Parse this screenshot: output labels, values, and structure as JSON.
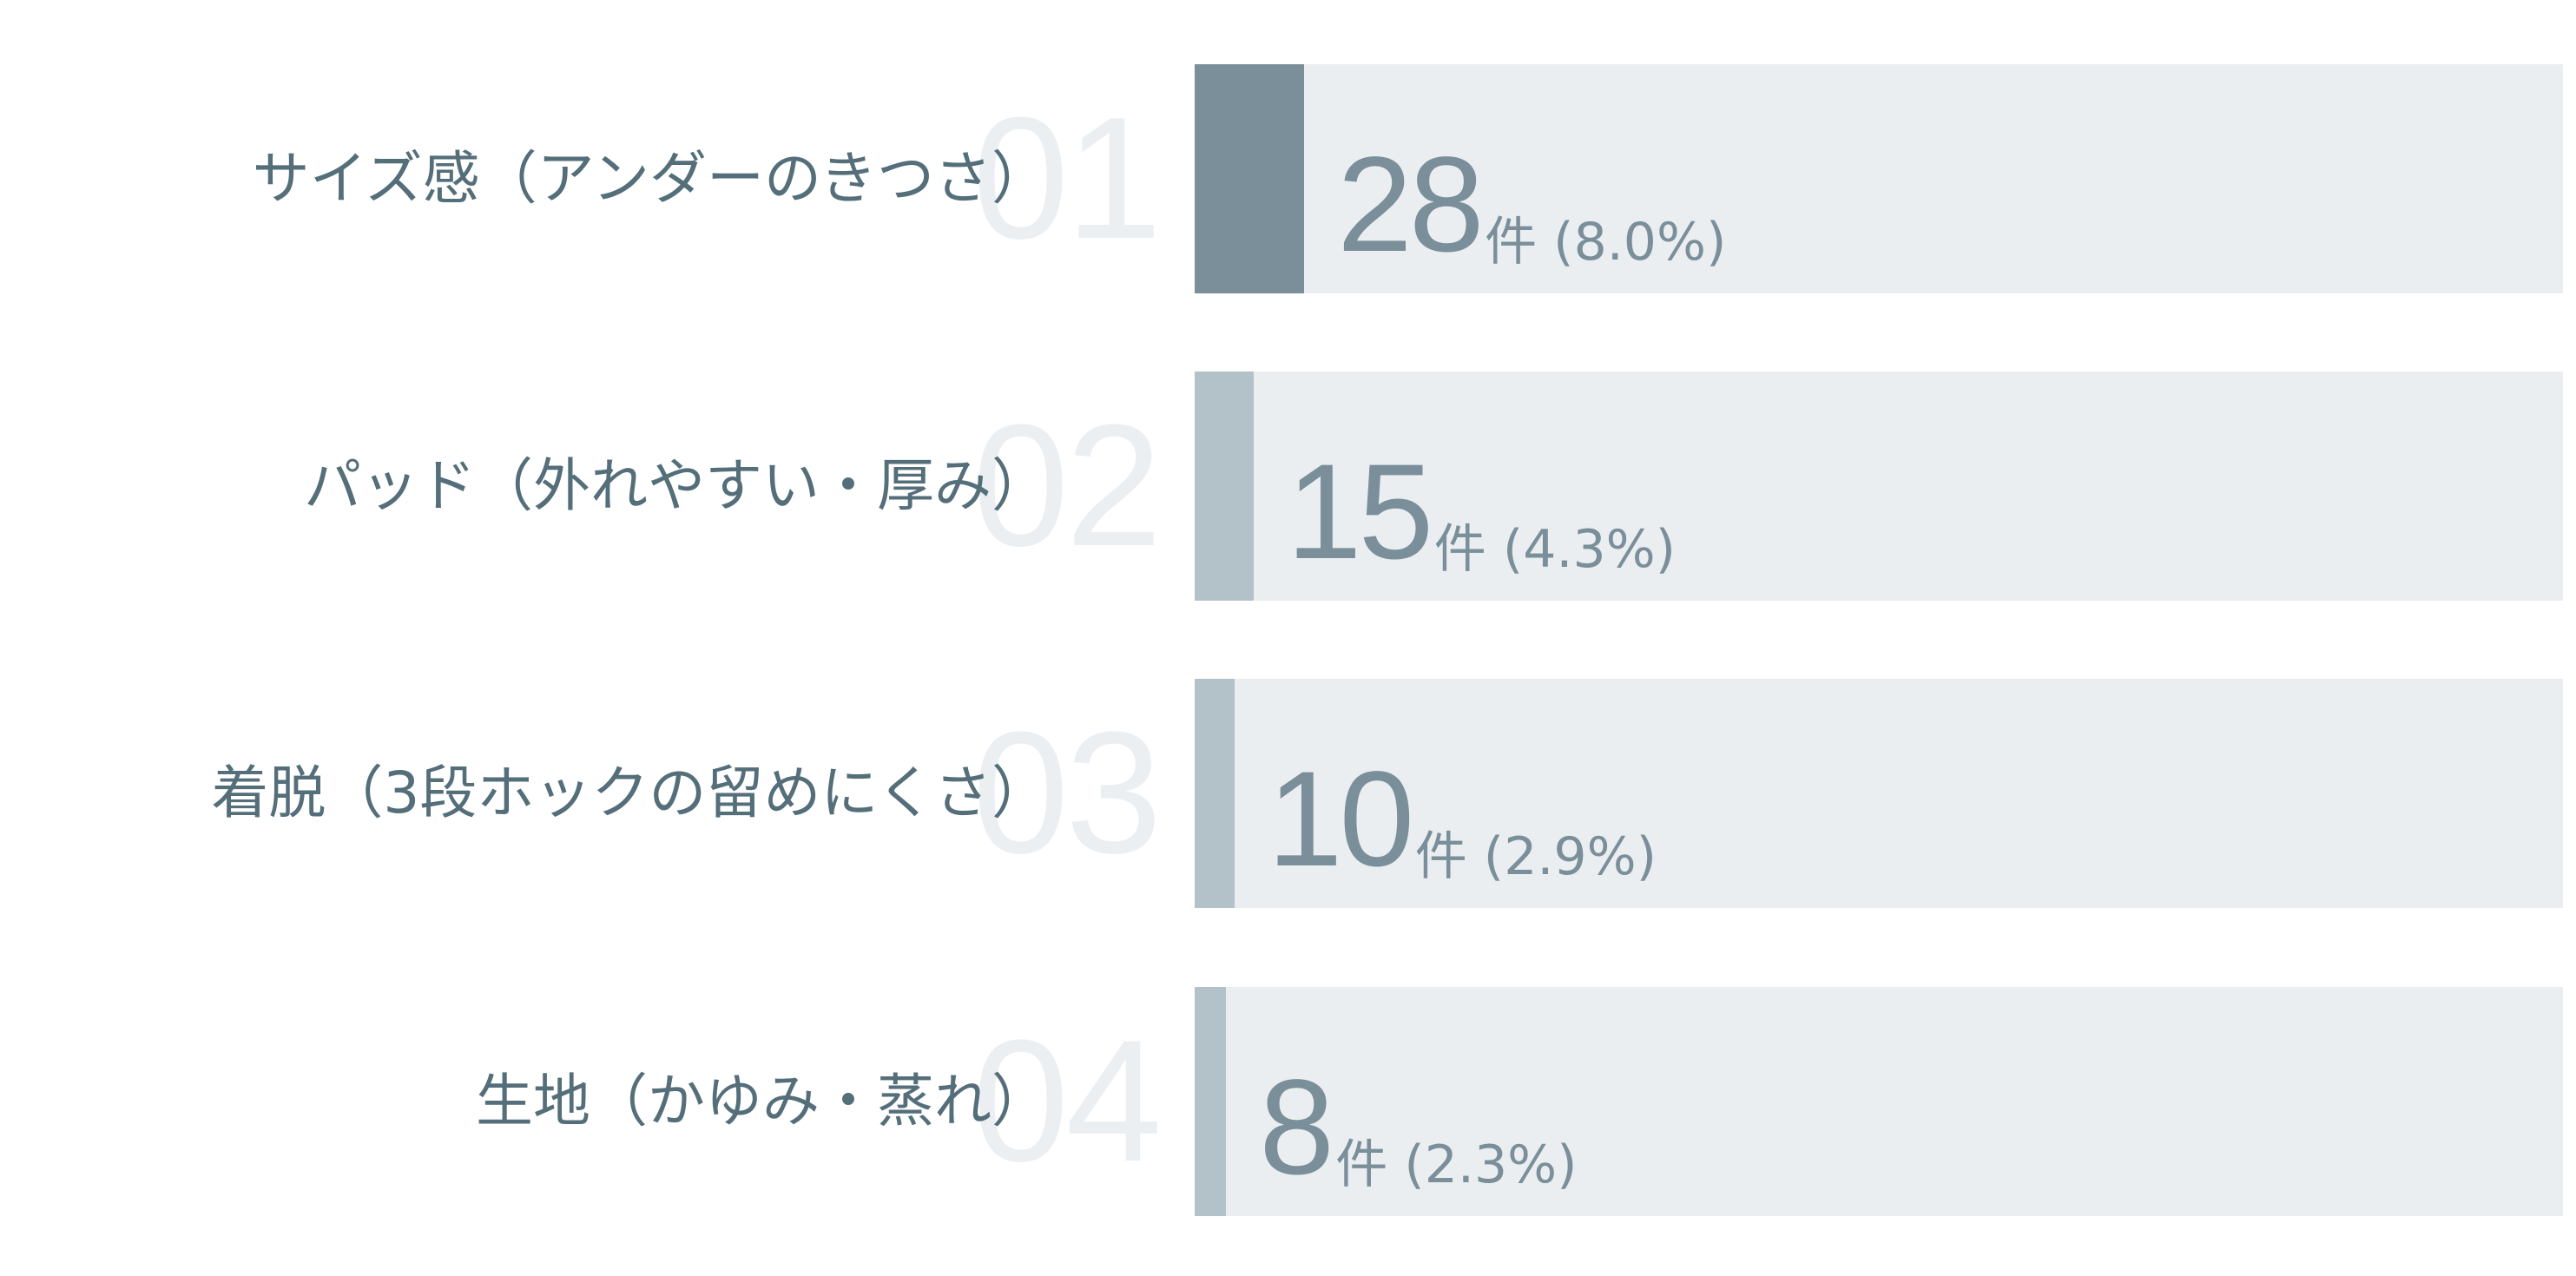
{
  "chart_data": {
    "type": "bar",
    "orientation": "horizontal",
    "categories": [
      "サイズ感（アンダーのきつさ）",
      "パッド（外れやすい・厚み）",
      "着脱（3段ホックの留めにくさ）",
      "生地（かゆみ・蒸れ）"
    ],
    "ranks": [
      "01",
      "02",
      "03",
      "04"
    ],
    "values": [
      28,
      15,
      10,
      8
    ],
    "percents": [
      8.0,
      4.3,
      2.9,
      2.3
    ],
    "value_unit": "件",
    "percent_labels": [
      "(8.0%)",
      "(4.3%)",
      "(2.9%)",
      "(2.3%)"
    ],
    "xlim": [
      0,
      100
    ],
    "grid": false,
    "colors": {
      "top_fill": "#7a8f9a",
      "fill": "#b3c1c8",
      "track": "#eaeef1",
      "label_text": "#546e7a",
      "value_text": "#7a8f9a",
      "rank_text": "#eceff2"
    }
  }
}
